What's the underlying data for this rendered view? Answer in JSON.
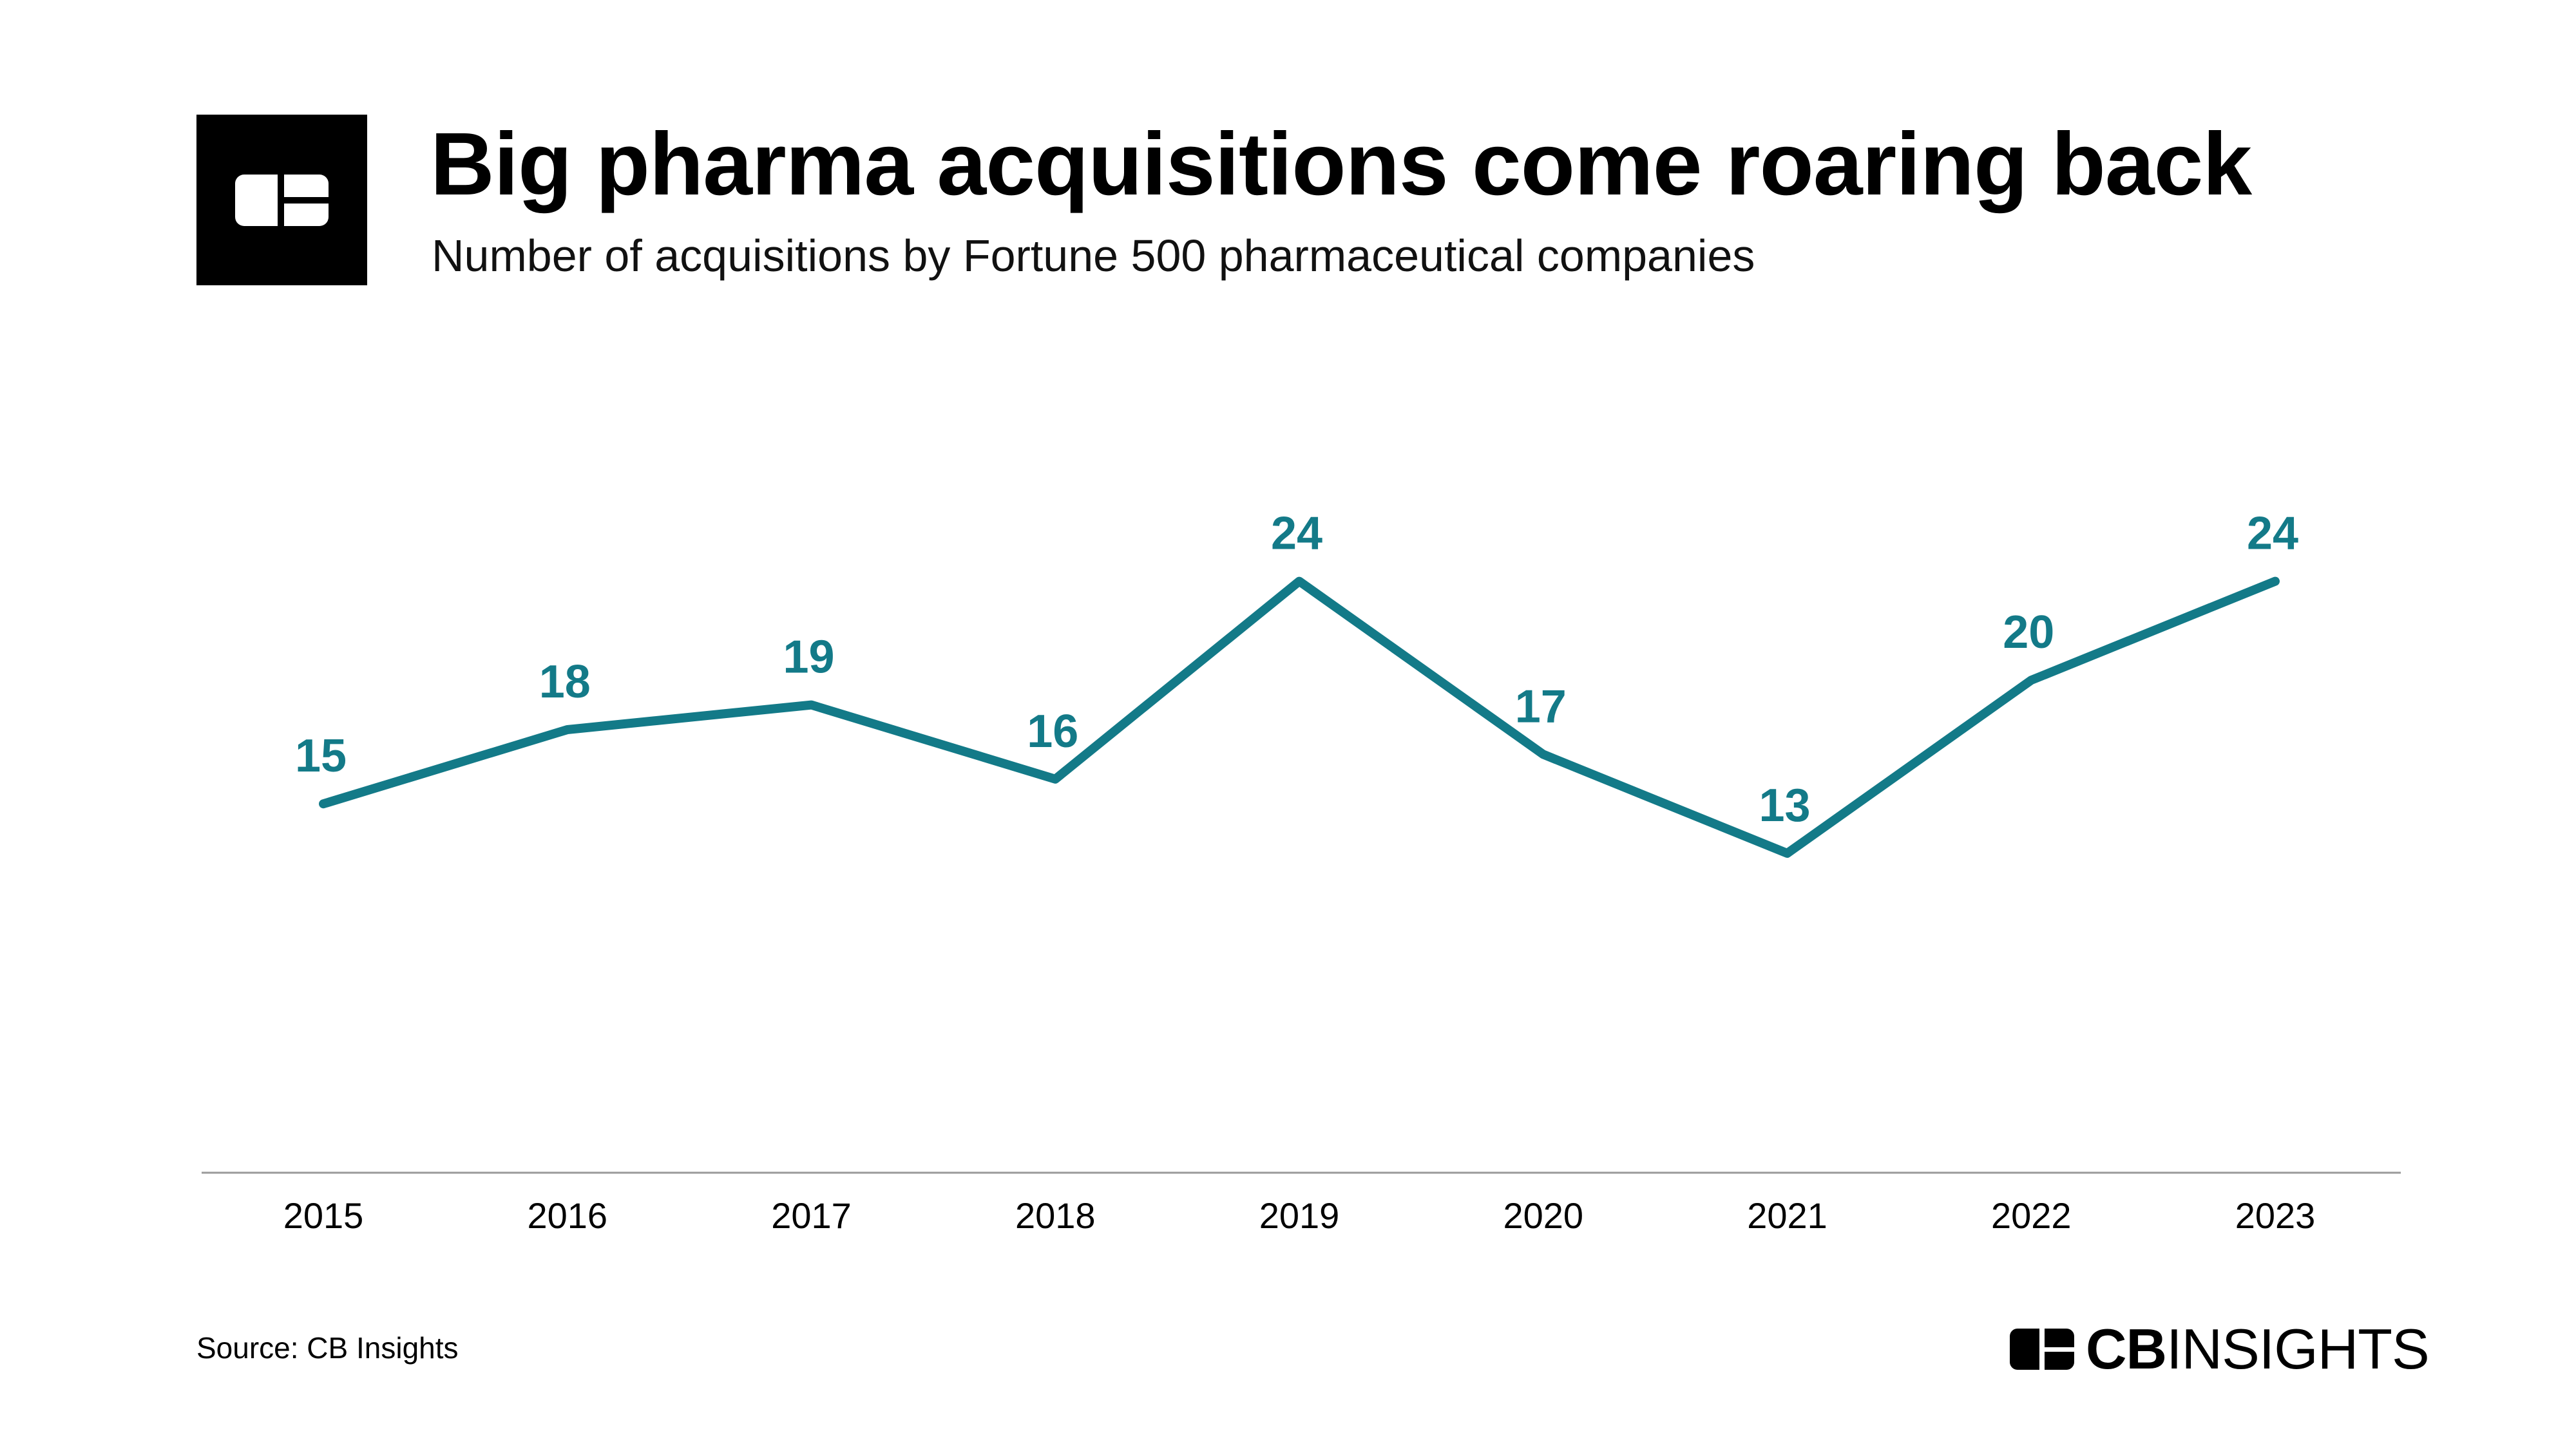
{
  "header": {
    "title": "Big pharma acquisitions come roaring back",
    "subtitle": "Number of acquisitions by Fortune 500 pharmaceutical companies"
  },
  "footer": {
    "source": "Source: CB Insights",
    "brand_bold": "CB",
    "brand_light": "INSIGHTS"
  },
  "colors": {
    "series": "#137a88",
    "axis": "#9a9a9a",
    "text": "#000000",
    "logo_bg": "#000000"
  },
  "chart_data": {
    "type": "line",
    "title": "Big pharma acquisitions come roaring back",
    "subtitle": "Number of acquisitions by Fortune 500 pharmaceutical companies",
    "xlabel": "",
    "ylabel": "",
    "categories": [
      "2015",
      "2016",
      "2017",
      "2018",
      "2019",
      "2020",
      "2021",
      "2022",
      "2023"
    ],
    "values": [
      15,
      18,
      19,
      16,
      24,
      17,
      13,
      20,
      24
    ],
    "data_labels": true,
    "grid": false,
    "legend": "none"
  }
}
